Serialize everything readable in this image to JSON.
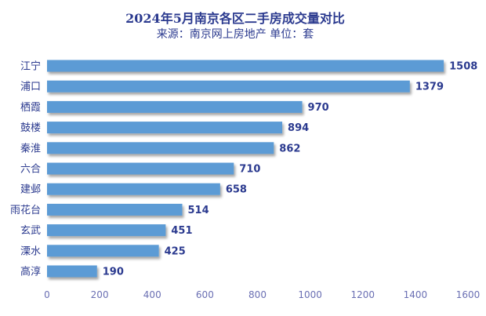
{
  "chart_data": {
    "type": "bar",
    "orientation": "horizontal",
    "title": "2024年5月南京各区二手房成交量对比",
    "subtitle": "来源：南京网上房地产 单位：套",
    "categories": [
      "江宁",
      "浦口",
      "栖霞",
      "鼓楼",
      "秦淮",
      "六合",
      "建邺",
      "雨花台",
      "玄武",
      "溧水",
      "高淳"
    ],
    "values": [
      1508,
      1379,
      970,
      894,
      862,
      710,
      658,
      514,
      451,
      425,
      190
    ],
    "xlim": [
      0,
      1600
    ],
    "xticks": [
      0,
      200,
      400,
      600,
      800,
      1000,
      1200,
      1400,
      1600
    ],
    "grid": false,
    "data_labels": true,
    "colors": {
      "bar": "#5b9bd5",
      "text": "#2b3a8f",
      "tick": "#6a6fb3"
    }
  }
}
